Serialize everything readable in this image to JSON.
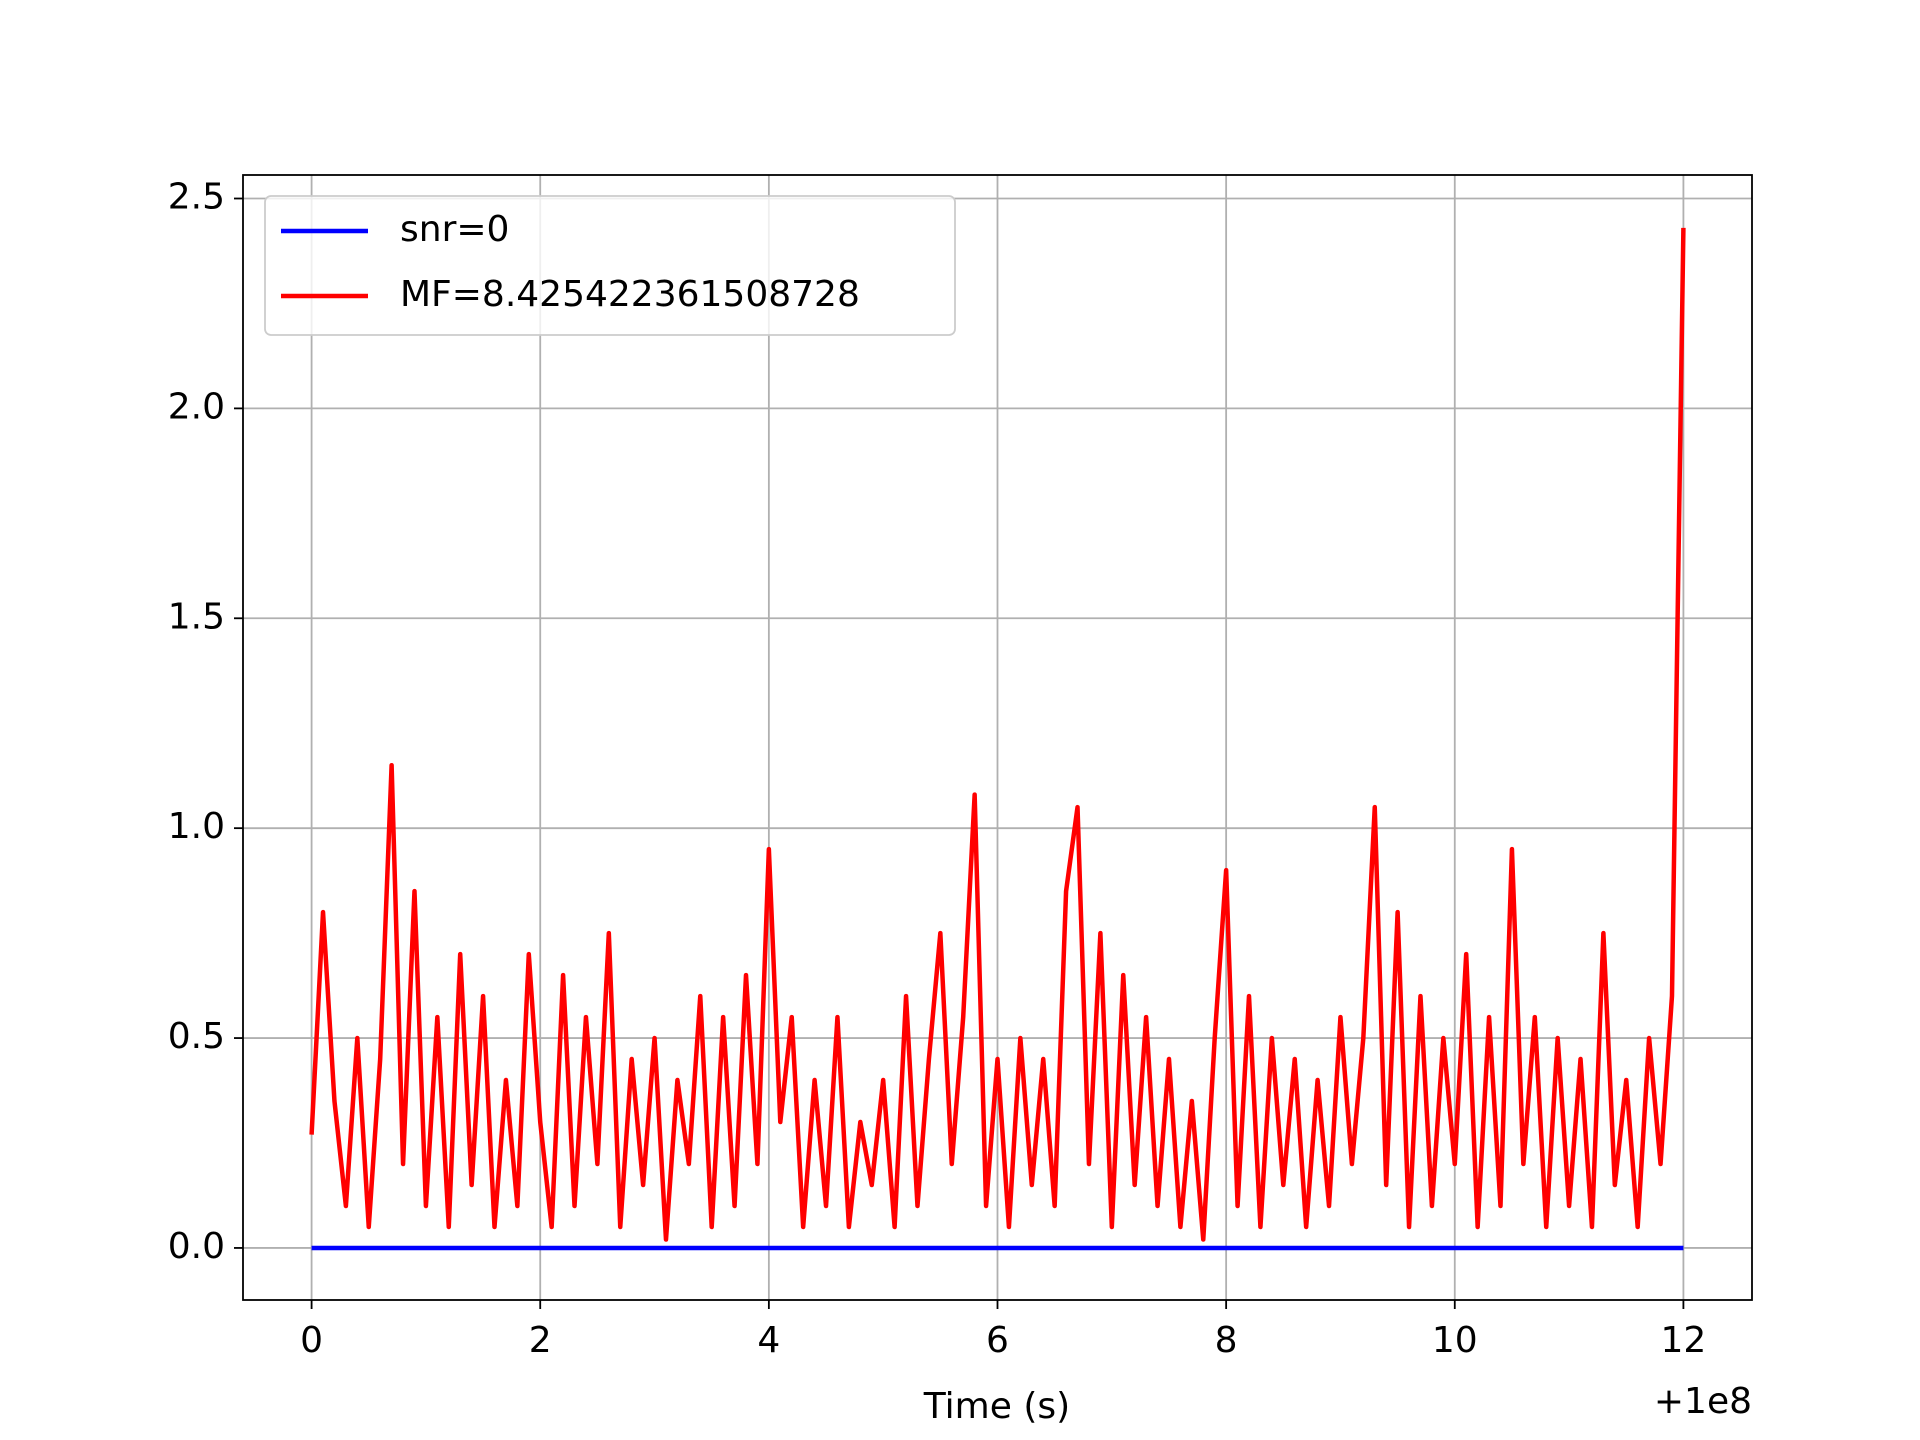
{
  "chart_data": {
    "type": "line",
    "xlabel": "Time (s)",
    "x_offset_label": "+1e8",
    "xlim": [
      -0.6,
      12.6
    ],
    "xticks": [
      0,
      2,
      4,
      6,
      8,
      10,
      12
    ],
    "ylim": [
      -0.124,
      2.556
    ],
    "yticks": [
      {
        "value": 0,
        "label": "0.0"
      },
      {
        "value": 0.5,
        "label": "0.5"
      },
      {
        "value": 1,
        "label": "1.0"
      },
      {
        "value": 1.5,
        "label": "1.5"
      },
      {
        "value": 2,
        "label": "2.0"
      },
      {
        "value": 2.5,
        "label": "2.5"
      }
    ],
    "grid": true,
    "legend": "upper left",
    "series": [
      {
        "name": "snr=0",
        "color": "#0000ff",
        "x": [
          0,
          12
        ],
        "values": [
          0,
          0
        ]
      },
      {
        "name": "MF=8.425422361508728",
        "color": "#ff0000",
        "x": [
          0,
          0.1,
          0.2,
          0.3,
          0.4,
          0.5,
          0.6,
          0.7,
          0.8,
          0.9,
          1,
          1.1,
          1.2,
          1.3,
          1.4,
          1.5,
          1.6,
          1.7,
          1.8,
          1.9,
          2,
          2.1,
          2.2,
          2.3,
          2.4,
          2.5,
          2.6,
          2.7,
          2.8,
          2.9,
          3,
          3.1,
          3.2,
          3.3,
          3.4,
          3.5,
          3.6,
          3.7,
          3.8,
          3.9,
          4,
          4.1,
          4.2,
          4.3,
          4.4,
          4.5,
          4.6,
          4.7,
          4.8,
          4.9,
          5,
          5.1,
          5.2,
          5.3,
          5.4,
          5.5,
          5.6,
          5.7,
          5.8,
          5.9,
          6,
          6.1,
          6.2,
          6.3,
          6.4,
          6.5,
          6.6,
          6.7,
          6.8,
          6.9,
          7,
          7.1,
          7.2,
          7.3,
          7.4,
          7.5,
          7.6,
          7.7,
          7.8,
          7.9,
          8,
          8.1,
          8.2,
          8.3,
          8.4,
          8.5,
          8.6,
          8.7,
          8.8,
          8.9,
          9,
          9.1,
          9.2,
          9.3,
          9.4,
          9.5,
          9.6,
          9.7,
          9.8,
          9.9,
          10,
          10.1,
          10.2,
          10.3,
          10.4,
          10.5,
          10.6,
          10.7,
          10.8,
          10.9,
          11,
          11.1,
          11.2,
          11.3,
          11.4,
          11.5,
          11.6,
          11.7,
          11.8,
          11.9,
          12
        ],
        "values": [
          0.27,
          0.8,
          0.35,
          0.1,
          0.5,
          0.05,
          0.45,
          1.15,
          0.2,
          0.85,
          0.1,
          0.55,
          0.05,
          0.7,
          0.15,
          0.6,
          0.05,
          0.4,
          0.1,
          0.7,
          0.3,
          0.05,
          0.65,
          0.1,
          0.55,
          0.2,
          0.75,
          0.05,
          0.45,
          0.15,
          0.5,
          0.02,
          0.4,
          0.2,
          0.6,
          0.05,
          0.55,
          0.1,
          0.65,
          0.2,
          0.95,
          0.3,
          0.55,
          0.05,
          0.4,
          0.1,
          0.55,
          0.05,
          0.3,
          0.15,
          0.4,
          0.05,
          0.6,
          0.1,
          0.45,
          0.75,
          0.2,
          0.55,
          1.08,
          0.1,
          0.45,
          0.05,
          0.5,
          0.15,
          0.45,
          0.1,
          0.85,
          1.05,
          0.2,
          0.75,
          0.05,
          0.65,
          0.15,
          0.55,
          0.1,
          0.45,
          0.05,
          0.35,
          0.02,
          0.5,
          0.9,
          0.1,
          0.6,
          0.05,
          0.5,
          0.15,
          0.45,
          0.05,
          0.4,
          0.1,
          0.55,
          0.2,
          0.5,
          1.05,
          0.15,
          0.8,
          0.05,
          0.6,
          0.1,
          0.5,
          0.2,
          0.7,
          0.05,
          0.55,
          0.1,
          0.95,
          0.2,
          0.55,
          0.05,
          0.5,
          0.1,
          0.45,
          0.05,
          0.75,
          0.15,
          0.4,
          0.05,
          0.5,
          0.2,
          0.6,
          2.43
        ]
      }
    ]
  }
}
